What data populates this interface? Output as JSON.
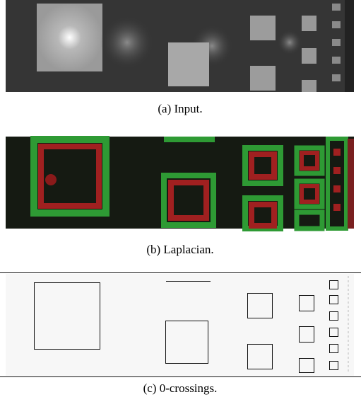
{
  "figure": {
    "panels": [
      {
        "caption": "(a) Input."
      },
      {
        "caption": "(b) Laplacian."
      },
      {
        "caption": "(c) 0-crossings."
      }
    ]
  }
}
